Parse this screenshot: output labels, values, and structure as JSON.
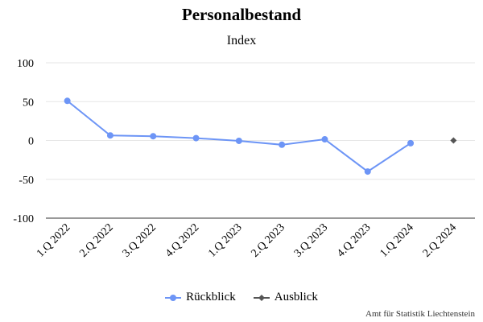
{
  "chart_data": {
    "type": "line",
    "title": "Personalbestand",
    "subtitle": "Index",
    "categories": [
      "1.Q 2022",
      "2.Q 2022",
      "3.Q 2022",
      "4.Q 2022",
      "1.Q 2023",
      "2.Q 2023",
      "3.Q 2023",
      "4.Q 2023",
      "1.Q 2024",
      "2.Q 2024"
    ],
    "ylim": [
      -100,
      100
    ],
    "yticks": [
      "100",
      "50",
      "0",
      "-50",
      "-100"
    ],
    "grid": true,
    "legend_position": "bottom",
    "series": [
      {
        "name": "Rückblick",
        "color": "#6d95f6",
        "marker": "circle",
        "values": [
          51,
          6.5,
          5.5,
          3,
          -0.5,
          -5.5,
          1.5,
          -40,
          -3.5,
          null
        ]
      },
      {
        "name": "Ausblick",
        "color": "#555555",
        "marker": "diamond",
        "values": [
          null,
          null,
          null,
          null,
          null,
          null,
          null,
          null,
          null,
          0
        ]
      }
    ]
  },
  "credit": "Amt für Statistik Liechtenstein"
}
